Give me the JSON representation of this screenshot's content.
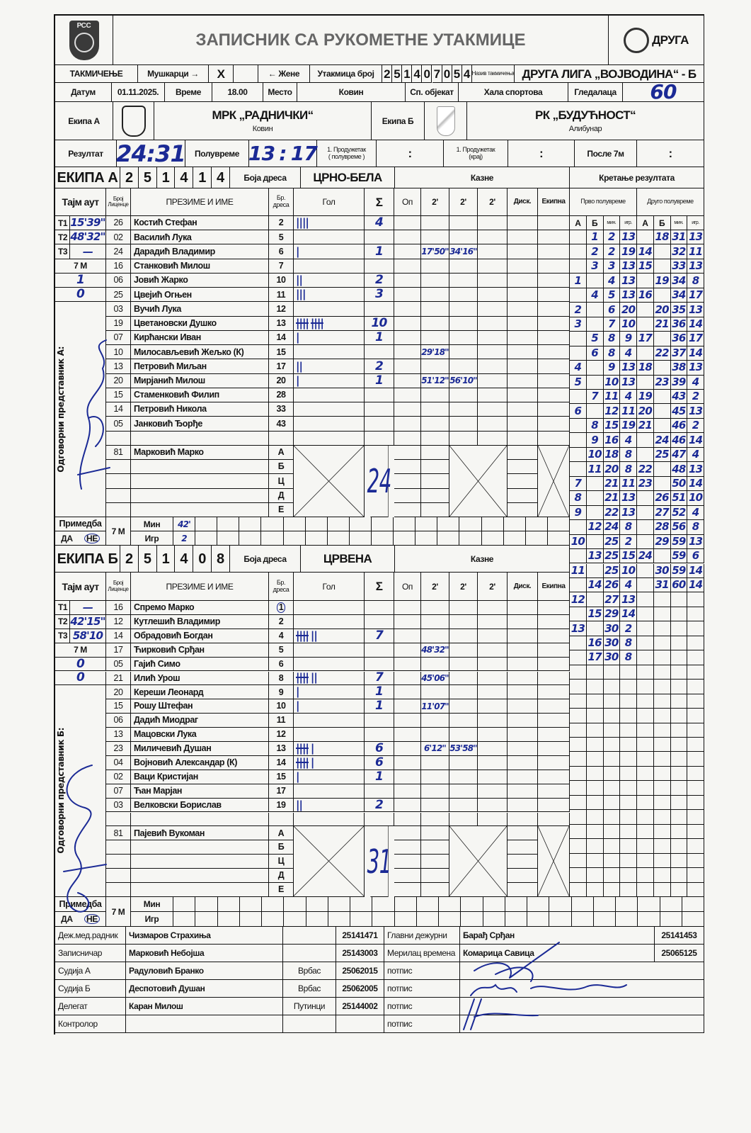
{
  "header": {
    "federation_logo_text": "РСС",
    "title": "ЗАПИСНИК СА РУКОМЕТНЕ УТАКМИЦЕ",
    "league_logo_text": "ДРУГА",
    "competition_label": "ТАКМИЧЕЊЕ",
    "men_label": "Мушкарци →",
    "men_mark": "X",
    "women_label": "← Жене",
    "match_number_label": "Утакмица број",
    "match_number_digits": [
      "2",
      "5",
      "1",
      "4",
      "0",
      "7",
      "0",
      "5",
      "4"
    ],
    "competition_name_label": "Назив такмичења",
    "competition_name": "ДРУГА ЛИГА „ВОЈВОДИНА“ - Б",
    "date_label": "Датум",
    "date": "01.11.2025.",
    "time_label": "Време",
    "time": "18.00",
    "place_label": "Место",
    "place": "Ковин",
    "venue_label": "Сп. објекат",
    "venue": "Хала спортова",
    "spectators_label": "Гледалаца",
    "spectators": "60"
  },
  "teams_row": {
    "team_a_label": "Екипа А",
    "team_a_name": "МРК „РАДНИЧКИ“",
    "team_a_city": "Ковин",
    "team_b_label": "Екипа Б",
    "team_b_name": "РК „БУДУЋНОСТ“",
    "team_b_city": "Алибунар"
  },
  "result": {
    "label": "Резултат",
    "final_a": "24",
    "final_b": "31",
    "halftime_label": "Полувреме",
    "halftime_a": "13",
    "halftime_b": "17",
    "separator": ":",
    "ot1_label_1": "1. Продужетак",
    "ot1_label_2": "( полувреме )",
    "ot2_label_1": "1. Продужетак",
    "ot2_label_2": "(крај)",
    "after7m_label": "После 7м"
  },
  "columns": {
    "timeout": "Тајм аут",
    "license_1": "Број",
    "license_2": "Лиценце",
    "name": "ПРЕЗИМЕ И ИМЕ",
    "jersey_1": "Бр.",
    "jersey_2": "дреса",
    "goals": "Гол",
    "sum": "Σ",
    "warning": "Оп",
    "two_min": "2'",
    "disq": "Диск.",
    "team_penalty": "Екипна"
  },
  "team_a": {
    "label": "ЕКИПА А",
    "code": [
      "2",
      "5",
      "1",
      "4",
      "1",
      "4"
    ],
    "jersey_color_label": "Боја дреса",
    "jersey_color": "ЦРНО-БЕЛА",
    "penalties_label": "Казне",
    "timeouts": [
      {
        "label": "T1",
        "time": "15'39\""
      },
      {
        "label": "T2",
        "time": "48'32\""
      },
      {
        "label": "T3",
        "time": "—"
      }
    ],
    "seven_m_label": "7 M",
    "seven_m": [
      "1",
      "0"
    ],
    "rep_label": "Одговорни представник А:",
    "players": [
      {
        "lic": "26",
        "name": "Костић Стефан",
        "jersey": "2",
        "goals": 4,
        "sum": "4",
        "two_min": []
      },
      {
        "lic": "02",
        "name": "Василић Лука",
        "jersey": "5",
        "goals": 0,
        "sum": "",
        "two_min": []
      },
      {
        "lic": "24",
        "name": "Дарадић Владимир",
        "jersey": "6",
        "goals": 1,
        "sum": "1",
        "two_min": [
          "17'50\"",
          "34'16\""
        ]
      },
      {
        "lic": "16",
        "name": "Станковић Милош",
        "jersey": "7",
        "goals": 0,
        "sum": "",
        "two_min": []
      },
      {
        "lic": "06",
        "name": "Јовић Жарко",
        "jersey": "10",
        "goals": 2,
        "sum": "2",
        "two_min": []
      },
      {
        "lic": "25",
        "name": "Цвејић Огњен",
        "jersey": "11",
        "goals": 3,
        "sum": "3",
        "two_min": []
      },
      {
        "lic": "03",
        "name": "Вучић Лука",
        "jersey": "12",
        "goals": 0,
        "sum": "",
        "two_min": []
      },
      {
        "lic": "19",
        "name": "Цветановски Душко",
        "jersey": "13",
        "goals": 10,
        "sum": "10",
        "two_min": []
      },
      {
        "lic": "07",
        "name": "Кирћански Иван",
        "jersey": "14",
        "goals": 1,
        "sum": "1",
        "two_min": []
      },
      {
        "lic": "10",
        "name": "Милосављевић Жељко (К)",
        "jersey": "15",
        "goals": 0,
        "sum": "",
        "two_min": [
          "29'18\""
        ]
      },
      {
        "lic": "13",
        "name": "Петровић Миљан",
        "jersey": "17",
        "goals": 2,
        "sum": "2",
        "two_min": []
      },
      {
        "lic": "20",
        "name": "Мирјанић Милош",
        "jersey": "20",
        "goals": 1,
        "sum": "1",
        "two_min": [
          "51'12\"",
          "56'10\""
        ]
      },
      {
        "lic": "15",
        "name": "Стаменковић Филип",
        "jersey": "28",
        "goals": 0,
        "sum": "",
        "two_min": []
      },
      {
        "lic": "14",
        "name": "Петровић Никола",
        "jersey": "33",
        "goals": 0,
        "sum": "",
        "two_min": []
      },
      {
        "lic": "05",
        "name": "Јанковић Ђорђе",
        "jersey": "43",
        "goals": 0,
        "sum": "",
        "two_min": []
      }
    ],
    "official": {
      "lic": "81",
      "name": "Марковић Марко"
    },
    "official_letters": [
      "А",
      "Б",
      "Ц",
      "Д",
      "Е"
    ],
    "total": "24",
    "remark_label": "Примедба",
    "yes": "ДА",
    "no": "НЕ",
    "min_label": "Мин",
    "player_label": "Игр",
    "seven_m_min": "42'",
    "seven_m_player": "2"
  },
  "team_b": {
    "label": "ЕКИПА Б",
    "code": [
      "2",
      "5",
      "1",
      "4",
      "0",
      "8"
    ],
    "jersey_color_label": "Боја дреса",
    "jersey_color": "ЦРВЕНА",
    "penalties_label": "Казне",
    "timeouts": [
      {
        "label": "T1",
        "time": "—"
      },
      {
        "label": "T2",
        "time": "42'15\""
      },
      {
        "label": "T3",
        "time": "58'10"
      }
    ],
    "seven_m_label": "7 M",
    "seven_m": [
      "0",
      "0"
    ],
    "rep_label": "Одговорни представник Б:",
    "players": [
      {
        "lic": "16",
        "name": "Спремо Марко",
        "jersey": "1",
        "goalkeeper_circled": true,
        "goals": 0,
        "sum": "",
        "two_min": []
      },
      {
        "lic": "12",
        "name": "Кутлешић Владимир",
        "jersey": "2",
        "goals": 0,
        "sum": "",
        "two_min": []
      },
      {
        "lic": "14",
        "name": "Обрадовић Богдан",
        "jersey": "4",
        "goals": 7,
        "sum": "7",
        "two_min": []
      },
      {
        "lic": "17",
        "name": "Ћирковић Срђан",
        "jersey": "5",
        "goals": 0,
        "sum": "",
        "two_min": [
          "48'32\""
        ]
      },
      {
        "lic": "05",
        "name": "Гајић Симо",
        "jersey": "6",
        "goals": 0,
        "sum": "",
        "two_min": []
      },
      {
        "lic": "21",
        "name": "Илић Урош",
        "jersey": "8",
        "goals": 7,
        "sum": "7",
        "two_min": [
          "45'06\""
        ]
      },
      {
        "lic": "20",
        "name": "Кереши Леонард",
        "jersey": "9",
        "goals": 1,
        "sum": "1",
        "two_min": []
      },
      {
        "lic": "15",
        "name": "Рошу Штефан",
        "jersey": "10",
        "goals": 1,
        "sum": "1",
        "two_min": [
          "11'07\""
        ]
      },
      {
        "lic": "06",
        "name": "Дадић Миодраг",
        "jersey": "11",
        "goals": 0,
        "sum": "",
        "two_min": []
      },
      {
        "lic": "13",
        "name": "Мацовски Лука",
        "jersey": "12",
        "goals": 0,
        "sum": "",
        "two_min": []
      },
      {
        "lic": "23",
        "name": "Миличевић Душан",
        "jersey": "13",
        "goals": 6,
        "sum": "6",
        "two_min": [
          "6'12\"",
          "53'58\""
        ]
      },
      {
        "lic": "04",
        "name": "Војновић Александар (К)",
        "jersey": "14",
        "goals": 6,
        "sum": "6",
        "two_min": []
      },
      {
        "lic": "02",
        "name": "Ваци Кристијан",
        "jersey": "15",
        "goals": 1,
        "sum": "1",
        "two_min": []
      },
      {
        "lic": "07",
        "name": "Ћан Марјан",
        "jersey": "17",
        "goals": 0,
        "sum": "",
        "two_min": []
      },
      {
        "lic": "03",
        "name": "Велковски Борислав",
        "jersey": "19",
        "goals": 2,
        "sum": "2",
        "two_min": []
      }
    ],
    "official": {
      "lic": "81",
      "name": "Пајевић Вукоман"
    },
    "official_letters": [
      "А",
      "Б",
      "Ц",
      "Д",
      "Е"
    ],
    "total": "31",
    "remark_label": "Примедба",
    "yes": "ДА",
    "no": "НЕ",
    "min_label": "Мин",
    "player_label": "Игр",
    "seven_m_min": "",
    "seven_m_player": ""
  },
  "running_score": {
    "label": "Кретање резултата",
    "first_half_label": "Прво полувреме",
    "second_half_label": "Друго полувреме",
    "sub_headers": [
      "А",
      "Б",
      "мин.",
      "игр."
    ],
    "first_half": [
      [
        "",
        "1",
        "2",
        "13"
      ],
      [
        "",
        "2",
        "2",
        "19"
      ],
      [
        "",
        "3",
        "3",
        "13"
      ],
      [
        "1",
        "",
        "4",
        "13"
      ],
      [
        "",
        "4",
        "5",
        "13"
      ],
      [
        "2",
        "",
        "6",
        "20"
      ],
      [
        "3",
        "",
        "7",
        "10"
      ],
      [
        "",
        "5",
        "8",
        "9"
      ],
      [
        "",
        "6",
        "8",
        "4"
      ],
      [
        "4",
        "",
        "9",
        "13"
      ],
      [
        "5",
        "",
        "10",
        "13"
      ],
      [
        "",
        "7",
        "11",
        "4"
      ],
      [
        "6",
        "",
        "12",
        "11"
      ],
      [
        "",
        "8",
        "15",
        "19"
      ],
      [
        "",
        "9",
        "16",
        "4"
      ],
      [
        "",
        "10",
        "18",
        "8"
      ],
      [
        "",
        "11",
        "20",
        "8"
      ],
      [
        "7",
        "",
        "21",
        "11"
      ],
      [
        "8",
        "",
        "21",
        "13"
      ],
      [
        "9",
        "",
        "22",
        "13"
      ],
      [
        "",
        "12",
        "24",
        "8"
      ],
      [
        "10",
        "",
        "25",
        "2"
      ],
      [
        "",
        "13",
        "25",
        "15"
      ],
      [
        "11",
        "",
        "25",
        "10"
      ],
      [
        "",
        "14",
        "26",
        "4"
      ],
      [
        "12",
        "",
        "27",
        "13"
      ],
      [
        "",
        "15",
        "29",
        "14"
      ],
      [
        "13",
        "",
        "30",
        "2"
      ],
      [
        "",
        "16",
        "30",
        "8"
      ],
      [
        "",
        "17",
        "30",
        "8"
      ]
    ],
    "second_half": [
      [
        "",
        "18",
        "31",
        "13"
      ],
      [
        "14",
        "",
        "32",
        "11"
      ],
      [
        "15",
        "",
        "33",
        "13"
      ],
      [
        "",
        "19",
        "34",
        "8"
      ],
      [
        "16",
        "",
        "34",
        "17"
      ],
      [
        "",
        "20",
        "35",
        "13"
      ],
      [
        "",
        "21",
        "36",
        "14"
      ],
      [
        "17",
        "",
        "36",
        "17"
      ],
      [
        "",
        "22",
        "37",
        "14"
      ],
      [
        "18",
        "",
        "38",
        "13"
      ],
      [
        "",
        "23",
        "39",
        "4"
      ],
      [
        "19",
        "",
        "43",
        "2"
      ],
      [
        "20",
        "",
        "45",
        "13"
      ],
      [
        "21",
        "",
        "46",
        "2"
      ],
      [
        "",
        "24",
        "46",
        "14"
      ],
      [
        "",
        "25",
        "47",
        "4"
      ],
      [
        "22",
        "",
        "48",
        "13"
      ],
      [
        "23",
        "",
        "50",
        "14"
      ],
      [
        "",
        "26",
        "51",
        "10"
      ],
      [
        "",
        "27",
        "52",
        "4"
      ],
      [
        "",
        "28",
        "56",
        "8"
      ],
      [
        "",
        "29",
        "59",
        "13"
      ],
      [
        "24",
        "",
        "59",
        "6"
      ],
      [
        "",
        "30",
        "59",
        "14"
      ],
      [
        "",
        "31",
        "60",
        "14"
      ]
    ]
  },
  "officials": [
    {
      "label": "Деж.мед.радник",
      "name": "Чизмаров Страхиња",
      "city": "",
      "id": "25141471",
      "label2": "Главни дежурни",
      "name2": "Барађ Срђан",
      "id2": "25141453"
    },
    {
      "label": "Записничар",
      "name": "Марковић Небојша",
      "city": "",
      "id": "25143003",
      "label2": "Мерилац времена",
      "name2": "Комарица Савица",
      "id2": "25065125"
    },
    {
      "label": "Судија А",
      "name": "Радуловић Бранко",
      "city": "Врбас",
      "id": "25062015",
      "label2": "потпис",
      "name2": "",
      "id2": ""
    },
    {
      "label": "Судија Б",
      "name": "Деспотовић Душан",
      "city": "Врбас",
      "id": "25062005",
      "label2": "потпис",
      "name2": "",
      "id2": ""
    },
    {
      "label": "Делегат",
      "name": "Каран Милош",
      "city": "Путинци",
      "id": "25144002",
      "label2": "потпис",
      "name2": "",
      "id2": ""
    },
    {
      "label": "Контролор",
      "name": "",
      "city": "",
      "id": "",
      "label2": "потпис",
      "name2": "",
      "id2": ""
    }
  ],
  "colors": {
    "ink": "#141414",
    "handwriting": "#1b2a95",
    "paper": "#f6f6f3"
  }
}
